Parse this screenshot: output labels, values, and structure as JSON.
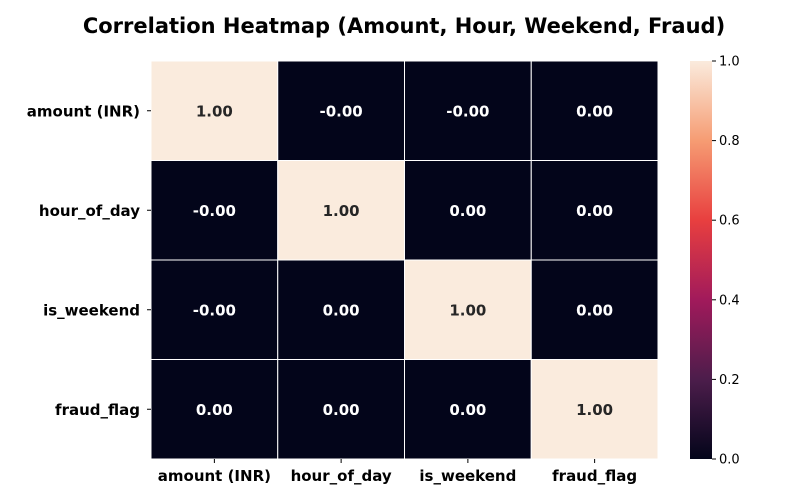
{
  "chart_data": {
    "type": "heatmap",
    "title": "Correlation Heatmap (Amount, Hour, Weekend, Fraud)",
    "x_labels": [
      "amount (INR)",
      "hour_of_day",
      "is_weekend",
      "fraud_flag"
    ],
    "y_labels": [
      "amount (INR)",
      "hour_of_day",
      "is_weekend",
      "fraud_flag"
    ],
    "values": [
      [
        1.0,
        -0.0,
        -0.0,
        0.0
      ],
      [
        -0.0,
        1.0,
        0.0,
        0.0
      ],
      [
        -0.0,
        0.0,
        1.0,
        0.0
      ],
      [
        0.0,
        0.0,
        0.0,
        1.0
      ]
    ],
    "value_labels": [
      [
        "1.00",
        "-0.00",
        "-0.00",
        "0.00"
      ],
      [
        "-0.00",
        "1.00",
        "0.00",
        "0.00"
      ],
      [
        "-0.00",
        "0.00",
        "1.00",
        "0.00"
      ],
      [
        "0.00",
        "0.00",
        "0.00",
        "1.00"
      ]
    ],
    "colorbar": {
      "range": [
        0.0,
        1.0
      ],
      "ticks": [
        0.0,
        0.2,
        0.4,
        0.6,
        0.8,
        1.0
      ],
      "tick_labels": [
        "0.0",
        "0.2",
        "0.4",
        "0.6",
        "0.8",
        "1.0"
      ],
      "colormap": "rocket",
      "stops": [
        "#03051a",
        "#4c1d4b",
        "#a11a5b",
        "#e83f3f",
        "#f69c73",
        "#faebdd"
      ]
    },
    "grid": true,
    "legend": "right colorbar"
  }
}
